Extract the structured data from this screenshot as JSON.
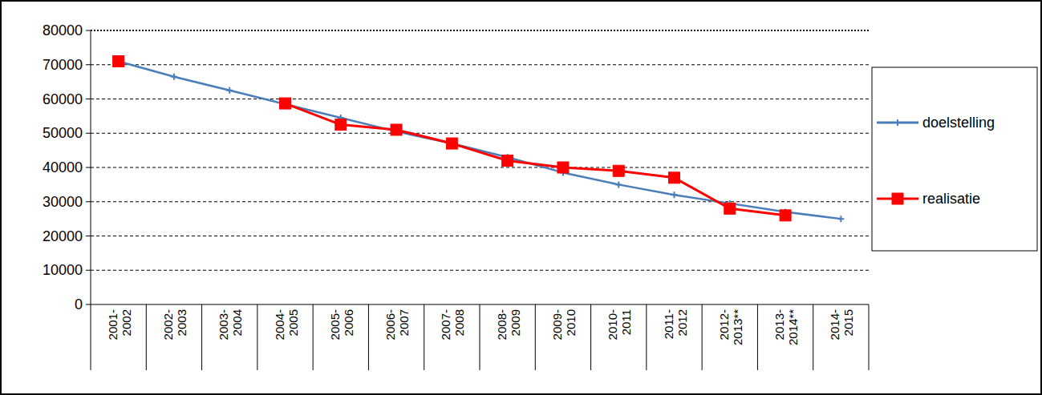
{
  "chart_data": {
    "type": "line",
    "categories": [
      "2001-2002",
      "2002-2003",
      "2003-2004",
      "2004-2005",
      "2005-2006",
      "2006-2007",
      "2007-2008",
      "2008-2009",
      "2009-2010",
      "2010-2011",
      "2011-2012",
      "2012-2013**",
      "2013-2014**",
      "2014-2015"
    ],
    "series": [
      {
        "name": "doelstelling",
        "color": "#4a7ebb",
        "marker": "plus",
        "values": [
          71000,
          66500,
          62500,
          58500,
          54500,
          50500,
          47000,
          43000,
          38500,
          35000,
          32000,
          29500,
          27000,
          25000
        ]
      },
      {
        "name": "realisatie",
        "color": "#ff0000",
        "marker": "square",
        "values": [
          71000,
          null,
          null,
          58700,
          52500,
          51000,
          47000,
          42000,
          40000,
          39000,
          37000,
          28000,
          26000,
          null
        ]
      }
    ],
    "ylim": [
      0,
      80000
    ],
    "yticks": [
      0,
      10000,
      20000,
      30000,
      40000,
      50000,
      60000,
      70000,
      80000
    ],
    "grid": true,
    "legend": "right"
  }
}
